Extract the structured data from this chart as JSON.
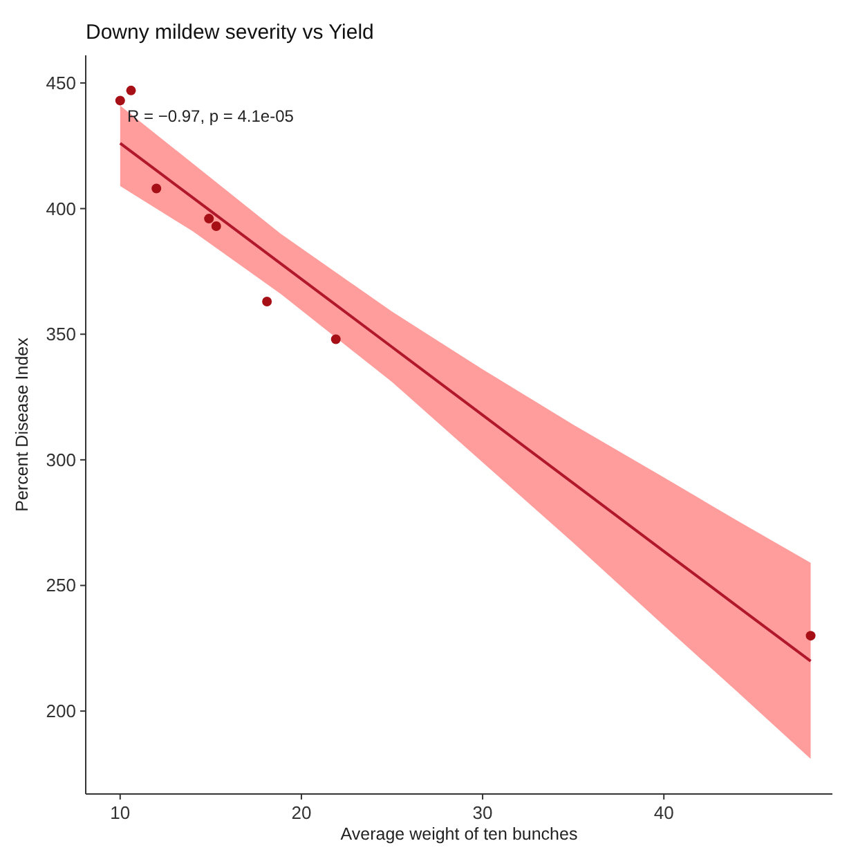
{
  "chart_data": {
    "type": "scatter",
    "title": "Downy mildew severity vs Yield",
    "xlabel": "Average weight of ten bunches",
    "ylabel": "Percent Disease Index",
    "annotations": [
      "R = −0.97, p = 4.1e-05"
    ],
    "series": [
      {
        "color": "#a50f15",
        "x": [
          10.0,
          10.6,
          12.0,
          14.9,
          15.3,
          18.1,
          21.9,
          48.1
        ],
        "values": [
          443,
          447,
          408,
          396,
          393,
          363,
          348,
          230
        ]
      },
      {
        "type": "line",
        "marker": "none",
        "color": "#b2182b",
        "x": [
          10,
          14,
          18.86,
          25,
          30,
          35,
          40,
          44,
          48.1
        ],
        "values": [
          426,
          404.4,
          378.1,
          344.9,
          317.8,
          290.7,
          263.6,
          242,
          219.9
        ],
        "lower": [
          409,
          391,
          366,
          331,
          299,
          267,
          234,
          208,
          181
        ],
        "upper": [
          441,
          418,
          390,
          359,
          336,
          314,
          293,
          276,
          259
        ]
      }
    ],
    "marker": "circle",
    "xlim": [
      8.1,
      49.3
    ],
    "xticks": [
      10,
      20,
      30,
      40
    ],
    "ylim": [
      167,
      461
    ],
    "yticks": [
      200,
      250,
      300,
      350,
      400,
      450
    ],
    "grid": false
  }
}
